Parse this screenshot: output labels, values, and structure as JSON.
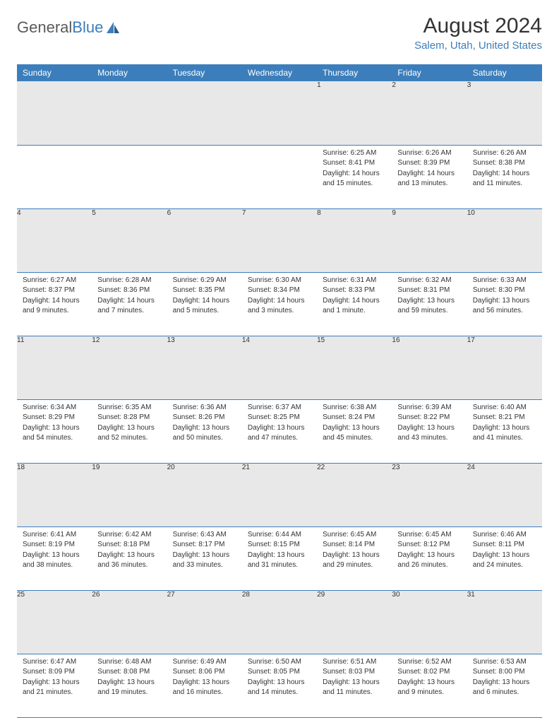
{
  "brand": {
    "part1": "General",
    "part2": "Blue"
  },
  "title": "August 2024",
  "location": "Salem, Utah, United States",
  "colors": {
    "header_bg": "#3c7ebb",
    "header_text": "#ffffff",
    "daynum_bg": "#e8e8e8",
    "text": "#333333",
    "location_color": "#3c7ebb",
    "row_border": "#3c7ebb"
  },
  "weekdays": [
    "Sunday",
    "Monday",
    "Tuesday",
    "Wednesday",
    "Thursday",
    "Friday",
    "Saturday"
  ],
  "weeks": [
    [
      null,
      null,
      null,
      null,
      {
        "n": "1",
        "sr": "Sunrise: 6:25 AM",
        "ss": "Sunset: 8:41 PM",
        "dl1": "Daylight: 14 hours",
        "dl2": "and 15 minutes."
      },
      {
        "n": "2",
        "sr": "Sunrise: 6:26 AM",
        "ss": "Sunset: 8:39 PM",
        "dl1": "Daylight: 14 hours",
        "dl2": "and 13 minutes."
      },
      {
        "n": "3",
        "sr": "Sunrise: 6:26 AM",
        "ss": "Sunset: 8:38 PM",
        "dl1": "Daylight: 14 hours",
        "dl2": "and 11 minutes."
      }
    ],
    [
      {
        "n": "4",
        "sr": "Sunrise: 6:27 AM",
        "ss": "Sunset: 8:37 PM",
        "dl1": "Daylight: 14 hours",
        "dl2": "and 9 minutes."
      },
      {
        "n": "5",
        "sr": "Sunrise: 6:28 AM",
        "ss": "Sunset: 8:36 PM",
        "dl1": "Daylight: 14 hours",
        "dl2": "and 7 minutes."
      },
      {
        "n": "6",
        "sr": "Sunrise: 6:29 AM",
        "ss": "Sunset: 8:35 PM",
        "dl1": "Daylight: 14 hours",
        "dl2": "and 5 minutes."
      },
      {
        "n": "7",
        "sr": "Sunrise: 6:30 AM",
        "ss": "Sunset: 8:34 PM",
        "dl1": "Daylight: 14 hours",
        "dl2": "and 3 minutes."
      },
      {
        "n": "8",
        "sr": "Sunrise: 6:31 AM",
        "ss": "Sunset: 8:33 PM",
        "dl1": "Daylight: 14 hours",
        "dl2": "and 1 minute."
      },
      {
        "n": "9",
        "sr": "Sunrise: 6:32 AM",
        "ss": "Sunset: 8:31 PM",
        "dl1": "Daylight: 13 hours",
        "dl2": "and 59 minutes."
      },
      {
        "n": "10",
        "sr": "Sunrise: 6:33 AM",
        "ss": "Sunset: 8:30 PM",
        "dl1": "Daylight: 13 hours",
        "dl2": "and 56 minutes."
      }
    ],
    [
      {
        "n": "11",
        "sr": "Sunrise: 6:34 AM",
        "ss": "Sunset: 8:29 PM",
        "dl1": "Daylight: 13 hours",
        "dl2": "and 54 minutes."
      },
      {
        "n": "12",
        "sr": "Sunrise: 6:35 AM",
        "ss": "Sunset: 8:28 PM",
        "dl1": "Daylight: 13 hours",
        "dl2": "and 52 minutes."
      },
      {
        "n": "13",
        "sr": "Sunrise: 6:36 AM",
        "ss": "Sunset: 8:26 PM",
        "dl1": "Daylight: 13 hours",
        "dl2": "and 50 minutes."
      },
      {
        "n": "14",
        "sr": "Sunrise: 6:37 AM",
        "ss": "Sunset: 8:25 PM",
        "dl1": "Daylight: 13 hours",
        "dl2": "and 47 minutes."
      },
      {
        "n": "15",
        "sr": "Sunrise: 6:38 AM",
        "ss": "Sunset: 8:24 PM",
        "dl1": "Daylight: 13 hours",
        "dl2": "and 45 minutes."
      },
      {
        "n": "16",
        "sr": "Sunrise: 6:39 AM",
        "ss": "Sunset: 8:22 PM",
        "dl1": "Daylight: 13 hours",
        "dl2": "and 43 minutes."
      },
      {
        "n": "17",
        "sr": "Sunrise: 6:40 AM",
        "ss": "Sunset: 8:21 PM",
        "dl1": "Daylight: 13 hours",
        "dl2": "and 41 minutes."
      }
    ],
    [
      {
        "n": "18",
        "sr": "Sunrise: 6:41 AM",
        "ss": "Sunset: 8:19 PM",
        "dl1": "Daylight: 13 hours",
        "dl2": "and 38 minutes."
      },
      {
        "n": "19",
        "sr": "Sunrise: 6:42 AM",
        "ss": "Sunset: 8:18 PM",
        "dl1": "Daylight: 13 hours",
        "dl2": "and 36 minutes."
      },
      {
        "n": "20",
        "sr": "Sunrise: 6:43 AM",
        "ss": "Sunset: 8:17 PM",
        "dl1": "Daylight: 13 hours",
        "dl2": "and 33 minutes."
      },
      {
        "n": "21",
        "sr": "Sunrise: 6:44 AM",
        "ss": "Sunset: 8:15 PM",
        "dl1": "Daylight: 13 hours",
        "dl2": "and 31 minutes."
      },
      {
        "n": "22",
        "sr": "Sunrise: 6:45 AM",
        "ss": "Sunset: 8:14 PM",
        "dl1": "Daylight: 13 hours",
        "dl2": "and 29 minutes."
      },
      {
        "n": "23",
        "sr": "Sunrise: 6:45 AM",
        "ss": "Sunset: 8:12 PM",
        "dl1": "Daylight: 13 hours",
        "dl2": "and 26 minutes."
      },
      {
        "n": "24",
        "sr": "Sunrise: 6:46 AM",
        "ss": "Sunset: 8:11 PM",
        "dl1": "Daylight: 13 hours",
        "dl2": "and 24 minutes."
      }
    ],
    [
      {
        "n": "25",
        "sr": "Sunrise: 6:47 AM",
        "ss": "Sunset: 8:09 PM",
        "dl1": "Daylight: 13 hours",
        "dl2": "and 21 minutes."
      },
      {
        "n": "26",
        "sr": "Sunrise: 6:48 AM",
        "ss": "Sunset: 8:08 PM",
        "dl1": "Daylight: 13 hours",
        "dl2": "and 19 minutes."
      },
      {
        "n": "27",
        "sr": "Sunrise: 6:49 AM",
        "ss": "Sunset: 8:06 PM",
        "dl1": "Daylight: 13 hours",
        "dl2": "and 16 minutes."
      },
      {
        "n": "28",
        "sr": "Sunrise: 6:50 AM",
        "ss": "Sunset: 8:05 PM",
        "dl1": "Daylight: 13 hours",
        "dl2": "and 14 minutes."
      },
      {
        "n": "29",
        "sr": "Sunrise: 6:51 AM",
        "ss": "Sunset: 8:03 PM",
        "dl1": "Daylight: 13 hours",
        "dl2": "and 11 minutes."
      },
      {
        "n": "30",
        "sr": "Sunrise: 6:52 AM",
        "ss": "Sunset: 8:02 PM",
        "dl1": "Daylight: 13 hours",
        "dl2": "and 9 minutes."
      },
      {
        "n": "31",
        "sr": "Sunrise: 6:53 AM",
        "ss": "Sunset: 8:00 PM",
        "dl1": "Daylight: 13 hours",
        "dl2": "and 6 minutes."
      }
    ]
  ]
}
